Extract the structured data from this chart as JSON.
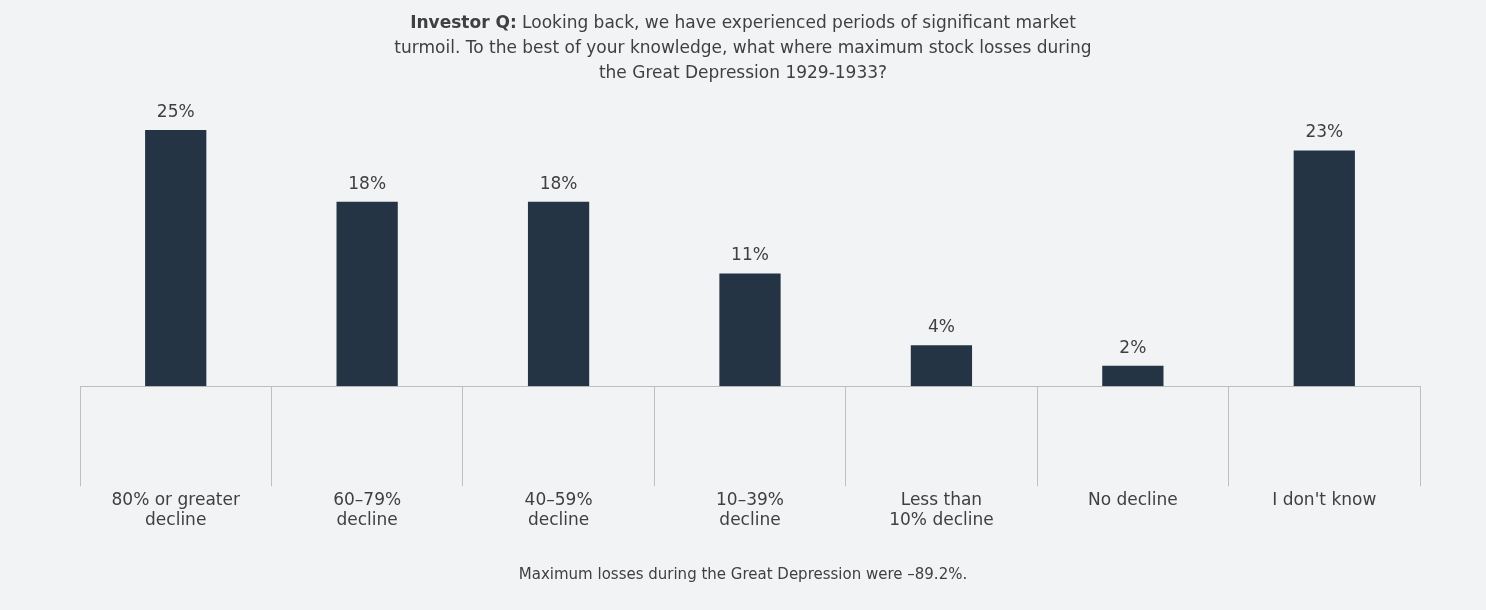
{
  "chart_data": {
    "type": "bar",
    "title": "Investor Q: Looking back, we have experienced periods of significant market turmoil. To the best of your knowledge, what where maximum stock losses during the Great Depression 1929-1933?",
    "categories": [
      "80% or greater decline",
      "60–79% decline",
      "40–59% decline",
      "10–39% decline",
      "Less than 10% decline",
      "No decline",
      "I don't know"
    ],
    "values": [
      25,
      18,
      18,
      11,
      4,
      2,
      23
    ],
    "value_labels": [
      "25%",
      "18%",
      "18%",
      "11%",
      "4%",
      "2%",
      "23%"
    ],
    "color": "#243444",
    "grid": false,
    "legend": false,
    "tick_labels": "x",
    "annotations": [
      "Maximum losses during the Great Depression were –89.2%."
    ]
  }
}
